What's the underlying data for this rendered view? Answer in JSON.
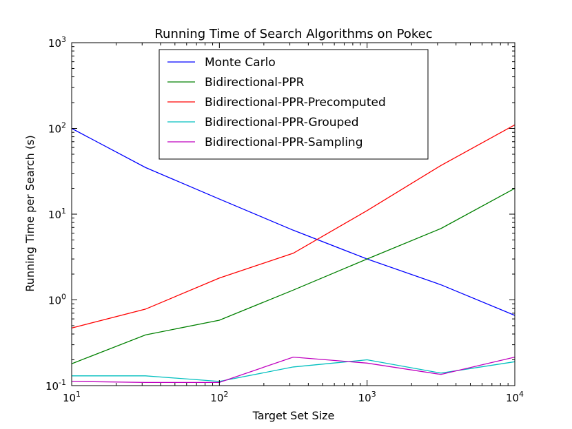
{
  "chart_data": {
    "type": "line",
    "title": "Running Time of Search Algorithms on Pokec",
    "xlabel": "Target Set Size",
    "ylabel": "Running Time per Search (s)",
    "xscale": "log",
    "yscale": "log",
    "xlim": [
      10,
      10000
    ],
    "ylim": [
      0.1,
      1000
    ],
    "grid": false,
    "legend_position": "top-center",
    "x_ticks": [
      {
        "value": 10,
        "base": "10",
        "exp": "1"
      },
      {
        "value": 100,
        "base": "10",
        "exp": "2"
      },
      {
        "value": 1000,
        "base": "10",
        "exp": "3"
      },
      {
        "value": 10000,
        "base": "10",
        "exp": "4"
      }
    ],
    "y_ticks": [
      {
        "value": 0.1,
        "base": "10",
        "exp": "-1"
      },
      {
        "value": 1,
        "base": "10",
        "exp": "0"
      },
      {
        "value": 10,
        "base": "10",
        "exp": "1"
      },
      {
        "value": 100,
        "base": "10",
        "exp": "2"
      },
      {
        "value": 1000,
        "base": "10",
        "exp": "3"
      }
    ],
    "x": [
      10,
      31.6,
      100,
      316,
      1000,
      3162,
      10000
    ],
    "series": [
      {
        "name": "Monte Carlo",
        "color": "#0000ff",
        "values": [
          100,
          35,
          15,
          6.5,
          3.0,
          1.5,
          0.66
        ]
      },
      {
        "name": "Bidirectional-PPR",
        "color": "#008000",
        "values": [
          0.18,
          0.39,
          0.58,
          1.3,
          3.0,
          6.8,
          20
        ]
      },
      {
        "name": "Bidirectional-PPR-Precomputed",
        "color": "#ff0000",
        "values": [
          0.47,
          0.78,
          1.8,
          3.5,
          11,
          37,
          110
        ]
      },
      {
        "name": "Bidirectional-PPR-Grouped",
        "color": "#00bfbf",
        "values": [
          0.13,
          0.13,
          0.112,
          0.165,
          0.2,
          0.14,
          0.19
        ]
      },
      {
        "name": "Bidirectional-PPR-Sampling",
        "color": "#bf00bf",
        "values": [
          0.112,
          0.109,
          0.109,
          0.215,
          0.183,
          0.135,
          0.215
        ]
      }
    ]
  }
}
